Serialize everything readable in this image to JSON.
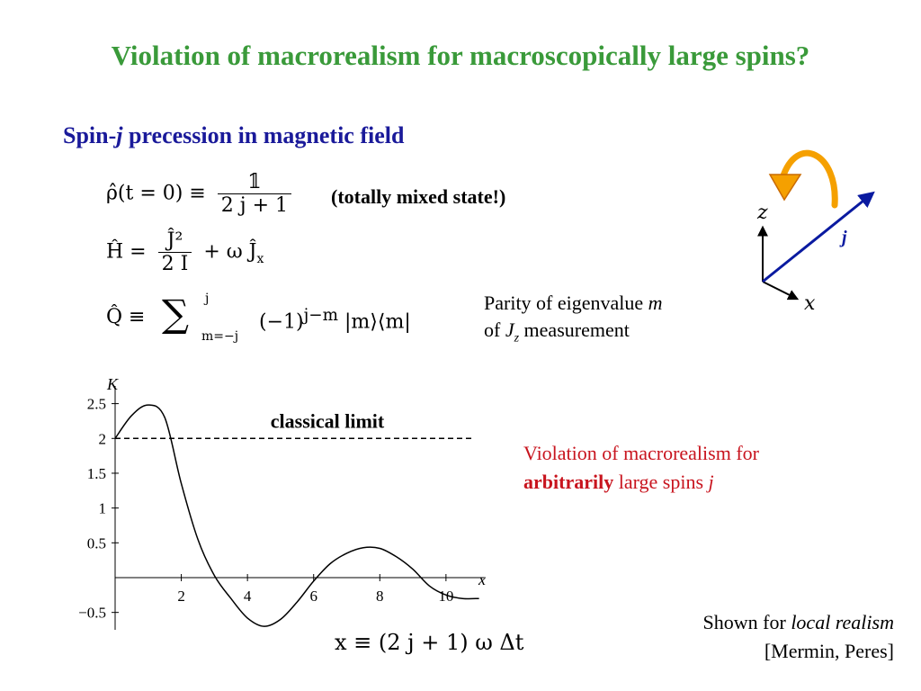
{
  "colors": {
    "title": "#3a9a3a",
    "subtitle": "#1a1a9a",
    "violation": "#c8141e",
    "arrow_fill": "#f5a000",
    "arrow_edge": "#c96a00",
    "vector": "#0a1aa0"
  },
  "title": "Violation of macrorealism for macroscopically large spins?",
  "subtitle": {
    "pre": "Spin-",
    "var": "j",
    "post": " precession in magnetic field"
  },
  "equations": {
    "rho": {
      "lhs": "ρ̂(t = 0) ≡",
      "numerator": "𝟙",
      "denominator": "2 j + 1"
    },
    "H": {
      "lhs": "Ĥ =",
      "numerator": "Ĵ²",
      "denominator": "2 I",
      "rest": "+ ω Ĵ",
      "rest_sub": "x"
    },
    "Q": {
      "lhs": "Q̂ ≡",
      "sum": "∑",
      "upper": "j",
      "lower": "m=−j",
      "body": "(−1)",
      "exp": "j−m",
      "tail": " |m⟩⟨m|"
    }
  },
  "state_note": "(totally mixed state!)",
  "parity_note": {
    "line1_pre": "Parity of eigenvalue ",
    "line1_var": "m",
    "line2_pre": "of ",
    "line2_var": "J",
    "line2_sub": "z",
    "line2_post": " measurement"
  },
  "diagram": {
    "z_label": "z",
    "x_label": "x",
    "j_label": "j"
  },
  "chart_data": {
    "type": "line",
    "ylabel": "K",
    "xlabel": "x",
    "xlim": [
      0,
      11.2
    ],
    "ylim": [
      -0.75,
      2.65
    ],
    "xticks": [
      2,
      4,
      6,
      8,
      10
    ],
    "xtick_labels": [
      "2",
      "4",
      "6",
      "8",
      "10"
    ],
    "yticks": [
      2.5,
      2,
      1.5,
      1,
      0.5,
      -0.5
    ],
    "ytick_labels": [
      "2.5",
      "2",
      "1.5",
      "1",
      "0.5",
      "−0.5"
    ],
    "reference_line": {
      "y": 2,
      "label": "classical limit",
      "style": "dashed"
    },
    "x": [
      0,
      0.5,
      1.0,
      1.5,
      2.0,
      2.5,
      3.0,
      3.5,
      4.0,
      4.5,
      5.0,
      5.5,
      6.0,
      6.5,
      7.0,
      7.5,
      8.0,
      8.5,
      9.0,
      9.5,
      10.0,
      10.5,
      11.0
    ],
    "values": [
      2.0,
      2.33,
      2.48,
      2.3,
      1.35,
      0.55,
      0.03,
      -0.3,
      -0.58,
      -0.7,
      -0.6,
      -0.35,
      -0.05,
      0.2,
      0.35,
      0.43,
      0.42,
      0.3,
      0.12,
      -0.12,
      -0.25,
      -0.3,
      -0.3
    ],
    "grid": false
  },
  "xdef": {
    "text": "x ≡ (2 j + 1) ω Δt"
  },
  "violation_note": {
    "line1": "Violation of macrorealism for",
    "bold": "arbitrarily",
    "rest": " large spins ",
    "var": "j"
  },
  "shown_note": {
    "pre": "Shown for ",
    "italic": "local realism",
    "line2": "[Mermin, Peres]"
  }
}
